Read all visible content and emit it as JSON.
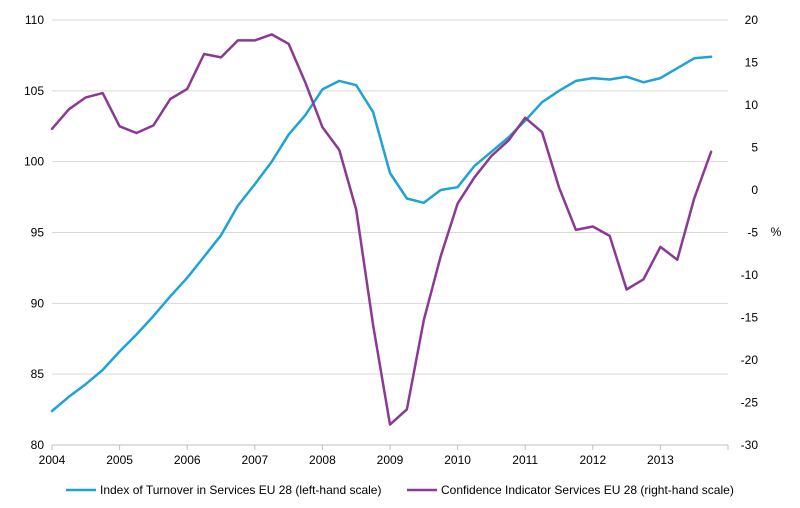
{
  "chart_data": {
    "type": "line",
    "x_tick_labels": [
      "2004",
      "2005",
      "2006",
      "2007",
      "2008",
      "2009",
      "2010",
      "2011",
      "2012",
      "2013"
    ],
    "x": [
      2004.0,
      2004.25,
      2004.5,
      2004.75,
      2005.0,
      2005.25,
      2005.5,
      2005.75,
      2006.0,
      2006.25,
      2006.5,
      2006.75,
      2007.0,
      2007.25,
      2007.5,
      2007.75,
      2008.0,
      2008.25,
      2008.5,
      2008.75,
      2009.0,
      2009.25,
      2009.5,
      2009.75,
      2010.0,
      2010.25,
      2010.5,
      2010.75,
      2011.0,
      2011.25,
      2011.5,
      2011.75,
      2012.0,
      2012.25,
      2012.5,
      2012.75,
      2013.0,
      2013.25,
      2013.5,
      2013.75
    ],
    "left_axis": {
      "ylim": [
        80,
        110
      ],
      "ticks": [
        "80",
        "85",
        "90",
        "95",
        "100",
        "105",
        "110"
      ]
    },
    "right_axis": {
      "ylim": [
        -30,
        20
      ],
      "ticks": [
        "-30",
        "-25",
        "-20",
        "-15",
        "-10",
        "-5",
        "0",
        "5",
        "10",
        "15",
        "20"
      ],
      "unit": "%"
    },
    "grid": "horizontal",
    "legend_position": "bottom",
    "series": [
      {
        "name": "Index of Turnover in Services EU 28 (left-hand scale)",
        "axis": "left",
        "color": "#1fa2d6",
        "values": [
          82.4,
          83.4,
          84.3,
          85.3,
          86.6,
          87.8,
          89.1,
          90.5,
          91.8,
          93.3,
          94.8,
          96.9,
          98.4,
          100.0,
          101.9,
          103.3,
          105.1,
          105.7,
          105.4,
          103.5,
          99.2,
          97.4,
          97.1,
          98.0,
          98.2,
          99.7,
          100.7,
          101.7,
          102.9,
          104.2,
          105.0,
          105.7,
          105.9,
          105.8,
          106.0,
          105.6,
          105.9,
          106.6,
          107.3,
          107.4
        ]
      },
      {
        "name": "Confidence Indicator Services EU 28 (right-hand scale)",
        "axis": "right",
        "color": "#8b3a93",
        "values": [
          7.2,
          9.5,
          10.9,
          11.4,
          7.5,
          6.7,
          7.6,
          10.7,
          11.9,
          16.0,
          15.6,
          17.6,
          17.6,
          18.3,
          17.2,
          12.6,
          7.4,
          4.7,
          -2.3,
          -15.9,
          -27.6,
          -25.8,
          -15.3,
          -7.8,
          -1.6,
          1.5,
          4.0,
          5.8,
          8.5,
          6.8,
          0.3,
          -4.7,
          -4.3,
          -5.4,
          -11.7,
          -10.5,
          -6.7,
          -8.2,
          -1.0,
          4.5
        ]
      }
    ]
  }
}
